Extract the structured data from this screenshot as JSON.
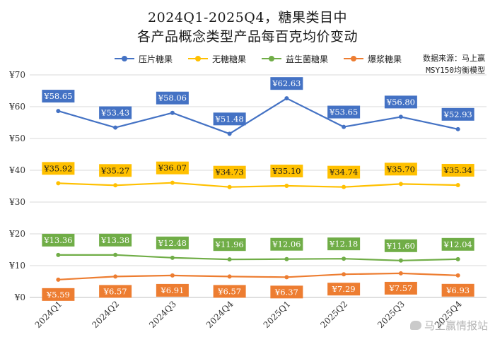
{
  "chart_data": {
    "type": "line",
    "title_line1": "2024Q1-2025Q4，糖果类目中",
    "title_line2": "各产品概念类型产品每百克均价变动",
    "categories": [
      "2024Q1",
      "2024Q2",
      "2024Q3",
      "2024Q4",
      "2025Q1",
      "2025Q2",
      "2025Q3",
      "2025Q4"
    ],
    "y_ticks": [
      "¥0",
      "¥10",
      "¥20",
      "¥30",
      "¥40",
      "¥50",
      "¥60",
      "¥70"
    ],
    "ylim": [
      0,
      70
    ],
    "grid": true,
    "legend_position": "top",
    "source_line1": "数据来源：马上赢",
    "source_line2": "MSY150均衡模型",
    "series": [
      {
        "name": "压片糖果",
        "color": "#4472c4",
        "label_position": "above",
        "values": [
          58.65,
          53.43,
          58.06,
          51.48,
          62.63,
          53.65,
          56.8,
          52.93
        ],
        "labels": [
          "¥58.65",
          "¥53.43",
          "¥58.06",
          "¥51.48",
          "¥62.63",
          "¥53.65",
          "¥56.80",
          "¥52.93"
        ]
      },
      {
        "name": "无糖糖果",
        "color": "#ffc000",
        "label_position": "above",
        "values": [
          35.92,
          35.27,
          36.07,
          34.73,
          35.1,
          34.74,
          35.7,
          35.34
        ],
        "labels": [
          "¥35.92",
          "¥35.27",
          "¥36.07",
          "¥34.73",
          "¥35.10",
          "¥34.74",
          "¥35.70",
          "¥35.34"
        ]
      },
      {
        "name": "益生菌糖果",
        "color": "#70ad47",
        "label_position": "above",
        "values": [
          13.36,
          13.38,
          12.48,
          11.96,
          12.06,
          12.18,
          11.6,
          12.04
        ],
        "labels": [
          "¥13.36",
          "¥13.38",
          "¥12.48",
          "¥11.96",
          "¥12.06",
          "¥12.18",
          "¥11.60",
          "¥12.04"
        ]
      },
      {
        "name": "爆浆糖果",
        "color": "#ed7d31",
        "label_position": "below",
        "values": [
          5.59,
          6.57,
          6.91,
          6.57,
          6.37,
          7.29,
          7.57,
          6.93
        ],
        "labels": [
          "¥5.59",
          "¥6.57",
          "¥6.91",
          "¥6.57",
          "¥6.37",
          "¥7.29",
          "¥7.57",
          "¥6.93"
        ]
      }
    ]
  },
  "watermark": "马上赢情报站"
}
